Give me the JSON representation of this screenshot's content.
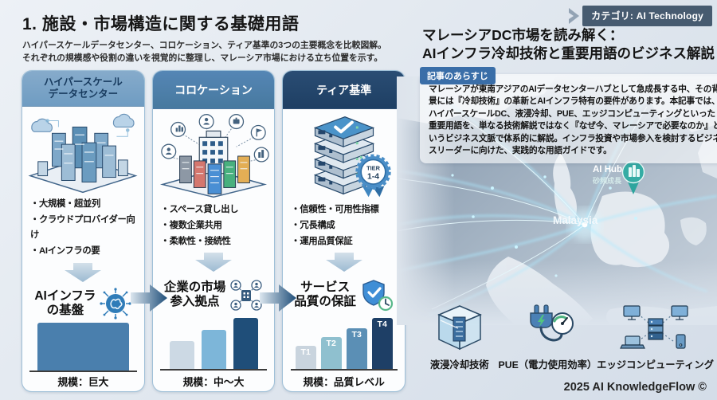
{
  "page": {
    "category_badge": "カテゴリ: AI Technology",
    "footer": "2025 AI KnowledgeFlow ©"
  },
  "left": {
    "title": "1. 施設・市場構造に関する基礎用語",
    "subtitle": "ハイパースケールデータセンター、コロケーション、ティア基準の3つの主要概念を比較図解。\nそれぞれの規模感や役割の違いを視覚的に整理し、マレーシア市場における立ち位置を示す。",
    "columns": [
      {
        "header": "ハイパースケール\nデータセンター",
        "bullets": [
          "・大規模・超並列",
          "・クラウドプロバイダー向け",
          "・AIインフラの要"
        ],
        "role": "AIインフラ\nの基盤",
        "scale_label": "規模：巨大",
        "bars": [
          {
            "label": "",
            "rel_height": 1,
            "color": "#4a7fad"
          }
        ]
      },
      {
        "header": "コロケーション",
        "bullets": [
          "・スペース貸し出し",
          "・複数企業共用",
          "・柔軟性・接続性"
        ],
        "role": "企業の市場\n参入拠点",
        "scale_label": "規模：中～大",
        "bars": [
          {
            "label": "",
            "rel_height": 0.55,
            "color": "#ccd9e4"
          },
          {
            "label": "",
            "rel_height": 0.76,
            "color": "#7db6d9"
          },
          {
            "label": "",
            "rel_height": 1,
            "color": "#1f4e79"
          }
        ]
      },
      {
        "header": "ティア基準",
        "bullets": [
          "・信頼性・可用性指標",
          "・冗長構成",
          "・運用品質保証"
        ],
        "role": "サービス\n品質の保証",
        "scale_label": "規模：品質レベル",
        "tier_badge_line1": "TIER",
        "tier_badge_line2": "1-4",
        "bars": [
          {
            "label": "T1",
            "rel_height": 0.46,
            "color": "#c9d4de"
          },
          {
            "label": "T2",
            "rel_height": 0.63,
            "color": "#8fc0cf"
          },
          {
            "label": "T3",
            "rel_height": 0.8,
            "color": "#5b8fb5"
          },
          {
            "label": "T4",
            "rel_height": 1,
            "color": "#1e3f66"
          }
        ]
      }
    ]
  },
  "right": {
    "title": "マレーシアDC市場を読み解く：\nAIインフラ冷却技術と重要用語のビジネス解説",
    "summary_badge": "記事のあらすじ",
    "summary": "マレーシアが東南アジアのAIデータセンターハブとして急成長する中、その背景には『冷却技術』の革新とAIインフラ特有の要件があります。本記事では、ハイパースケールDC、液浸冷却、PUE、エッジコンピューティングといった重要用語を、単なる技術解説ではなく『なぜ今、マレーシアで必要なのか』というビジネス文脈で体系的に解説。インフラ投資や市場参入を検討するビジネスリーダーに向けた、実践的な用語ガイドです。",
    "map": {
      "hub_label": "AI Hub",
      "hub_sublabel": "砂頻成長",
      "country_label": "Malaysia"
    },
    "glossary": [
      {
        "label": "液浸冷却技術"
      },
      {
        "label": "PUE（電力使用効率）"
      },
      {
        "label": "エッジコンピューティング"
      }
    ]
  }
}
